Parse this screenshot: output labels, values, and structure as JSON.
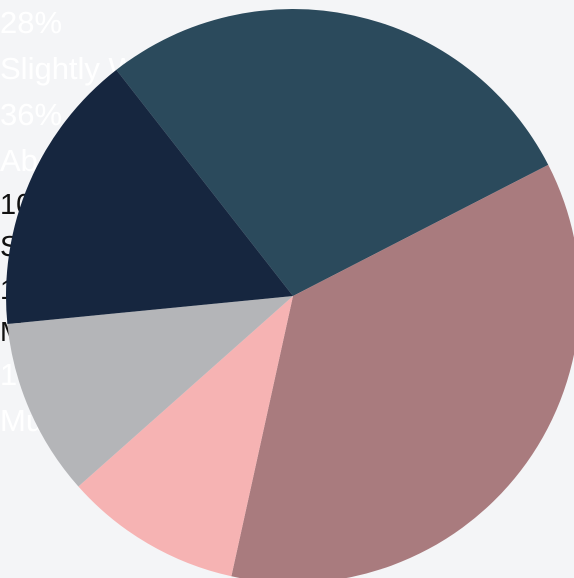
{
  "chart_data": {
    "type": "pie",
    "categories": [
      "Slightly Worse",
      "About the same",
      "Slightly Better",
      "Much Better",
      "Much Worse"
    ],
    "values": [
      28,
      36,
      10,
      10,
      16
    ],
    "value_labels": [
      "28%",
      "36%",
      "10%",
      "10%",
      "16%"
    ],
    "colors": [
      "#2b4a5c",
      "#a97b7e",
      "#f6b3b3",
      "#b4b5b8",
      "#16263f"
    ]
  }
}
